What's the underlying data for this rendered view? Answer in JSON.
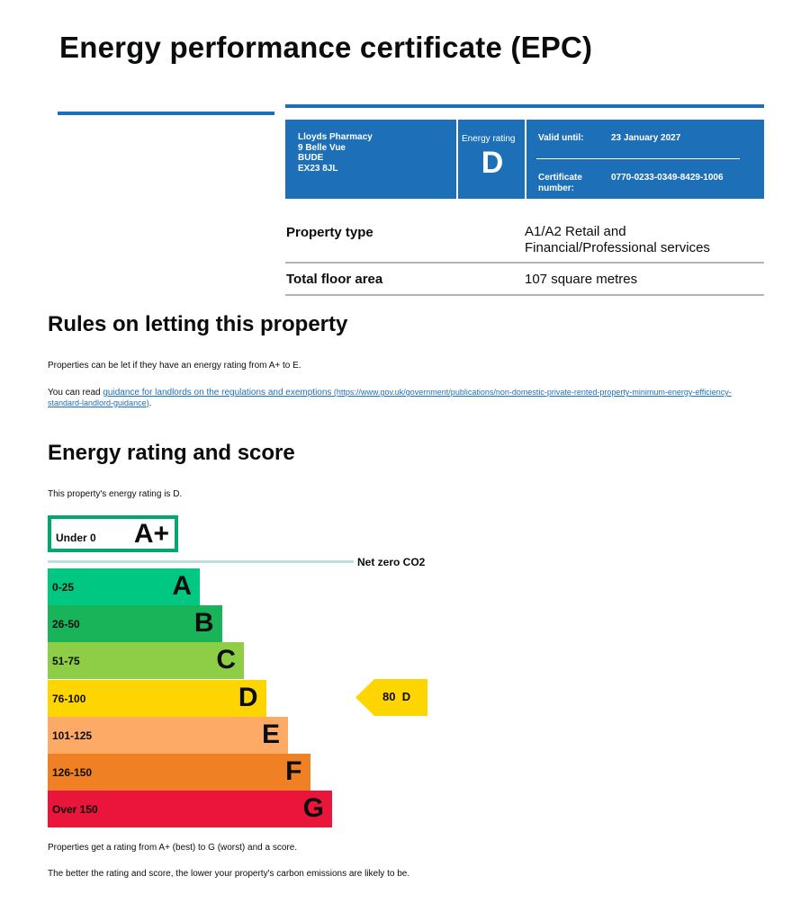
{
  "title": "Energy performance certificate (EPC)",
  "certificate": {
    "address": [
      "Lloyds Pharmacy",
      "9 Belle Vue",
      "BUDE",
      "EX23 8JL"
    ],
    "energy_rating_label": "Energy rating",
    "energy_rating": "D",
    "valid_until_label": "Valid until:",
    "valid_until": "23 January 2027",
    "certificate_number_label_1": "Certificate",
    "certificate_number_label_2": "number:",
    "certificate_number": "0770-0233-0349-8429-1006"
  },
  "property": {
    "type_label": "Property type",
    "type_value_line1": "A1/A2 Retail and",
    "type_value_line2": "Financial/Professional services",
    "area_label": "Total floor area",
    "area_value": "107 square metres"
  },
  "letting": {
    "heading": "Rules on letting this property",
    "p1": "Properties can be let if they have an energy rating from A+ to E.",
    "p2_prefix": "You can read ",
    "p2_link": "guidance for landlords on the regulations and exemptions",
    "p2_url": " (https://www.gov.uk/government/publications/non-domestic-private-rented-property-minimum-energy-efficiency-standard-landlord-guidance)",
    "p2_suffix": "."
  },
  "rating_section": {
    "heading": "Energy rating and score",
    "intro": "This property's energy rating is D.",
    "net_zero_label": "Net zero CO2",
    "footer1": "Properties get a rating from A+ (best) to G (worst) and a score.",
    "footer2": "The better the rating and score, the lower your property's carbon emissions are likely to be."
  },
  "chart_data": {
    "type": "bar",
    "bands": [
      {
        "range": "Under 0",
        "letter": "A+",
        "color": "#ffffff",
        "border": "#00a86b"
      },
      {
        "range": "0-25",
        "letter": "A",
        "color": "#00c781"
      },
      {
        "range": "26-50",
        "letter": "B",
        "color": "#19b459"
      },
      {
        "range": "51-75",
        "letter": "C",
        "color": "#8dce46"
      },
      {
        "range": "76-100",
        "letter": "D",
        "color": "#ffd500"
      },
      {
        "range": "101-125",
        "letter": "E",
        "color": "#fcaa65"
      },
      {
        "range": "126-150",
        "letter": "F",
        "color": "#ef8023"
      },
      {
        "range": "Over 150",
        "letter": "G",
        "color": "#e9153b"
      }
    ],
    "current": {
      "score": "80",
      "letter": "D",
      "color": "#ffd500"
    }
  }
}
